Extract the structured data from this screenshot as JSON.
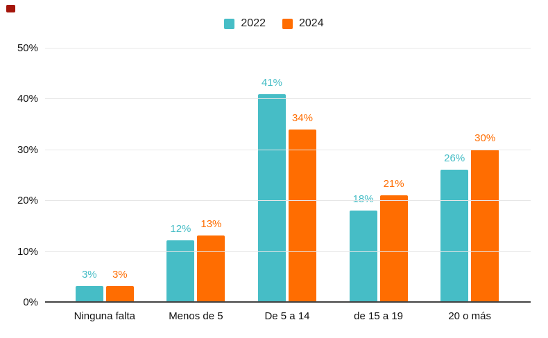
{
  "decorations": {
    "corner_marker_color": "#a4150b"
  },
  "chart_data": {
    "type": "bar",
    "title": "",
    "categories": [
      "Ninguna falta",
      "Menos de 5",
      "De 5 a 14",
      "de 15 a 19",
      "20 o más"
    ],
    "series": [
      {
        "name": "2022",
        "color": "#46bdc6",
        "values": [
          3,
          12,
          41,
          18,
          26
        ],
        "value_labels": [
          "3%",
          "12%",
          "41%",
          "18%",
          "26%"
        ]
      },
      {
        "name": "2024",
        "color": "#ff6d01",
        "values": [
          3,
          13,
          34,
          21,
          30
        ],
        "value_labels": [
          "3%",
          "13%",
          "34%",
          "21%",
          "30%"
        ]
      }
    ],
    "y_axis": {
      "min": 0,
      "max": 50,
      "ticks": [
        "0%",
        "10%",
        "20%",
        "30%",
        "40%",
        "50%"
      ]
    },
    "grid": true,
    "legend_position": "top",
    "styles": {
      "background": "#ffffff",
      "gridline_color": "#e6e6e6",
      "axis_line_color": "#424242",
      "tick_text_color": "#111111",
      "category_text_color": "#111111",
      "legend_text_color": "#212121"
    }
  }
}
